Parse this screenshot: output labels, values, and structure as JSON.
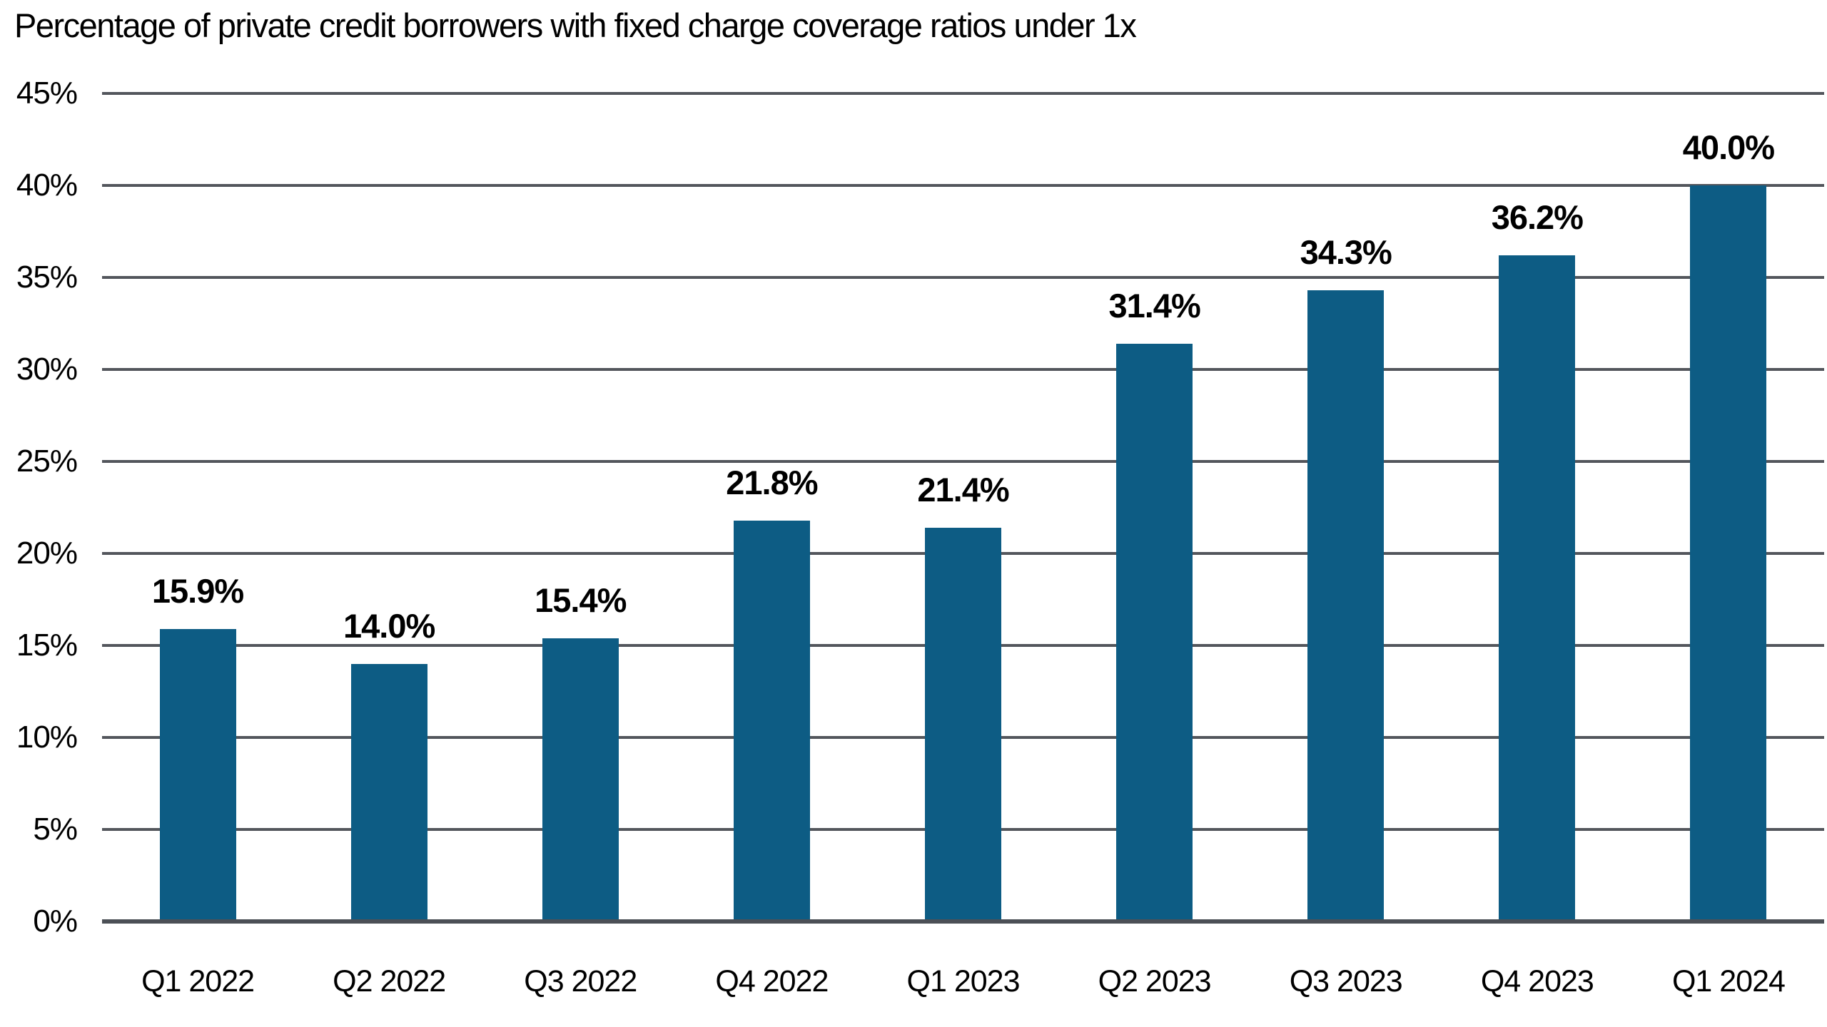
{
  "chart_data": {
    "type": "bar",
    "title": "Percentage of private credit borrowers with fixed charge coverage ratios under 1x",
    "categories": [
      "Q1 2022",
      "Q2 2022",
      "Q3 2022",
      "Q4 2022",
      "Q1 2023",
      "Q2 2023",
      "Q3 2023",
      "Q4 2023",
      "Q1 2024"
    ],
    "values": [
      15.9,
      14.0,
      15.4,
      21.8,
      21.4,
      31.4,
      34.3,
      36.2,
      40.0
    ],
    "data_labels": [
      "15.9%",
      "14.0%",
      "15.4%",
      "21.8%",
      "21.4%",
      "31.4%",
      "34.3%",
      "36.2%",
      "40.0%"
    ],
    "xlabel": "",
    "ylabel": "",
    "ylim": [
      0,
      45
    ],
    "ytick_interval": 5,
    "ytick_labels": [
      "0%",
      "5%",
      "10%",
      "15%",
      "20%",
      "25%",
      "30%",
      "35%",
      "40%",
      "45%"
    ],
    "grid": "horizontal",
    "legend": "none",
    "colors": {
      "bar": "#0D5C84",
      "gridline": "#53565C",
      "axis_line": "#4C5056",
      "text": "#000000",
      "background": "#FFFFFF"
    }
  }
}
